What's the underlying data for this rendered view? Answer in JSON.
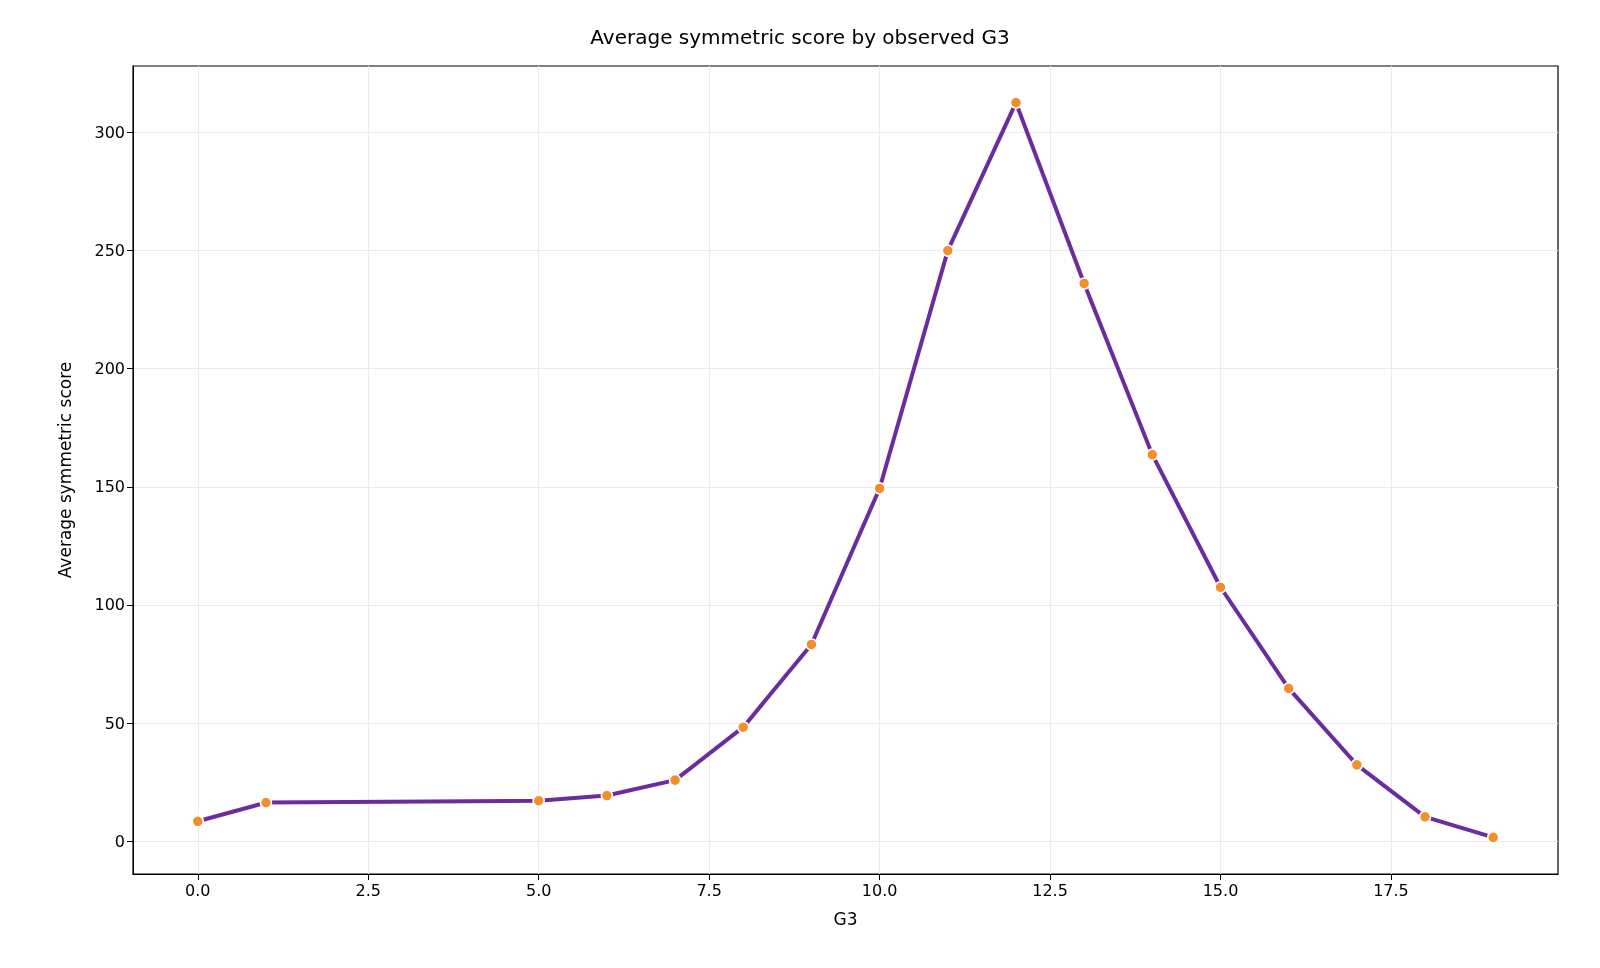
{
  "chart_data": {
    "type": "line",
    "title": "Average symmetric score by observed G3",
    "xlabel": "G3",
    "ylabel": "Average symmetric score",
    "x": [
      0,
      1,
      5,
      6,
      7,
      8,
      9,
      10,
      11,
      12,
      13,
      14,
      15,
      16,
      17,
      18,
      19
    ],
    "series": [
      {
        "color": "#6a2c9f",
        "colors": [
          "#f28e2b",
          "#f28e2b",
          "#f28e2b",
          "#f28e2b",
          "#f28e2b",
          "#f28e2b",
          "#f28e2b",
          "#f28e2b",
          "#f28e2b",
          "#f28e2b",
          "#f28e2b",
          "#f28e2b",
          "#f28e2b",
          "#f28e2b",
          "#f28e2b",
          "#f28e2b",
          "#f28e2b"
        ],
        "values": [
          8.5,
          16.4,
          17.2,
          19.4,
          25.9,
          48.3,
          83.3,
          149.3,
          249.9,
          312.5,
          236,
          163.6,
          107.5,
          64.7,
          32.4,
          10.4,
          1.7
        ]
      }
    ],
    "xlim": [
      -0.95,
      19.95
    ],
    "xticks": [
      {
        "value": 0,
        "label": "0.0"
      },
      {
        "value": 2.5,
        "label": "2.5"
      },
      {
        "value": 5,
        "label": "5.0"
      },
      {
        "value": 7.5,
        "label": "7.5"
      },
      {
        "value": 10,
        "label": "10.0"
      },
      {
        "value": 12.5,
        "label": "12.5"
      },
      {
        "value": 15,
        "label": "15.0"
      },
      {
        "value": 17.5,
        "label": "17.5"
      }
    ],
    "ylim": [
      -13.8,
      328
    ],
    "yticks": [
      0,
      50,
      100,
      150,
      200,
      250,
      300
    ],
    "grid": true,
    "marker": "circle",
    "line_style": "solid"
  }
}
